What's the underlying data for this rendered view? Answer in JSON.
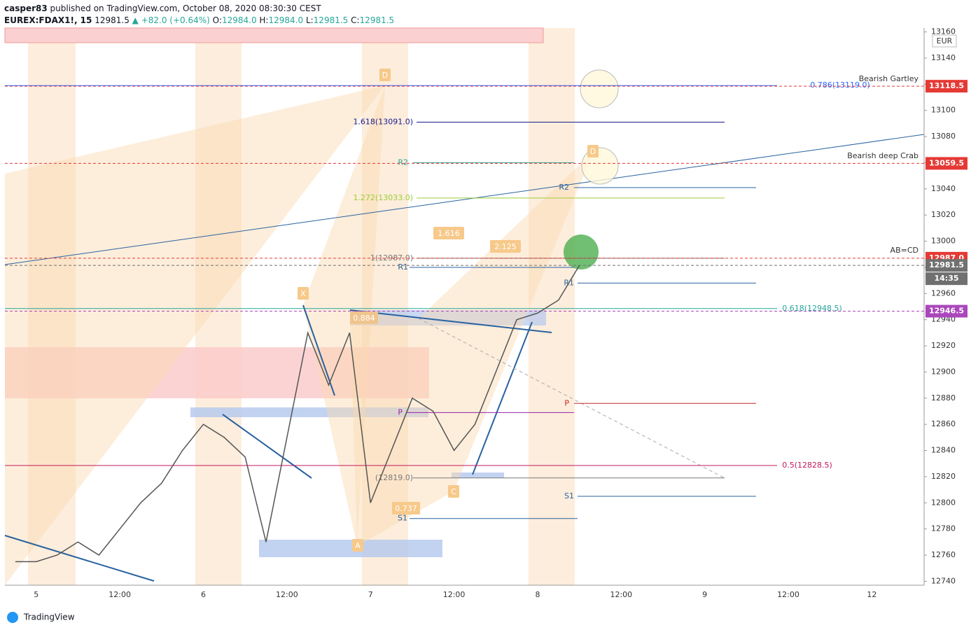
{
  "header": {
    "author": "casper83",
    "published": "published on TradingView.com, October 08, 2020 08:30:30 CEST",
    "symbol": "EUREX:FDAX1!, 15",
    "last": "12981.5",
    "change": "▲ +82.0 (+0.64%)",
    "ohlc": [
      {
        "key": "O:",
        "value": "12984.0"
      },
      {
        "key": "H:",
        "value": "12984.0"
      },
      {
        "key": "L:",
        "value": "12981.5"
      },
      {
        "key": "C:",
        "value": "12981.5"
      }
    ]
  },
  "chart_data": {
    "type": "line",
    "currency": "EUR",
    "categories": [
      null,
      "5",
      null,
      null,
      null,
      "12:00",
      null,
      null,
      null,
      "6",
      null,
      null,
      null,
      "12:00",
      null,
      null,
      null,
      "7",
      null,
      null,
      null,
      "12:00",
      null,
      null,
      null,
      "8",
      null,
      null,
      null,
      "12:00",
      null,
      null,
      null,
      "9",
      null,
      null,
      null,
      "12:00",
      null,
      null,
      null,
      "12",
      null,
      null
    ],
    "series": [
      {
        "color": "#555555",
        "values": [
          12755,
          12755,
          12760,
          12770,
          12760,
          12780,
          12800,
          12815,
          12840,
          12860,
          12850,
          12835,
          12770,
          12850,
          12930,
          12890,
          12930,
          12800,
          12840,
          12880,
          12870,
          12840,
          12860,
          12900,
          12940,
          12945,
          12955,
          12981.5,
          null,
          null,
          null,
          null,
          null,
          null,
          null,
          null,
          null,
          null,
          null,
          null,
          null,
          null,
          null,
          null
        ]
      }
    ],
    "ylim": [
      12737,
      13163
    ],
    "yticks": [
      12740,
      12760,
      12780,
      12800,
      12820,
      12840,
      12860,
      12880,
      12900,
      12920,
      12940,
      12960,
      12980,
      13000,
      13020,
      13040,
      13060,
      13080,
      13100,
      13120,
      13140,
      13160
    ],
    "levels": [
      {
        "label": "0.786(13119.0)",
        "value": 13119,
        "color": "#2962ff"
      },
      {
        "label": "1.618(13091.0)",
        "value": 13091,
        "color": "#1a1a8c"
      },
      {
        "label": "R2",
        "value": 13060,
        "color": "#26a69a"
      },
      {
        "label": "R2",
        "value": 13041,
        "color": "#2962a0"
      },
      {
        "label": "1.272(13033.0)",
        "value": 13033,
        "color": "#9acd32"
      },
      {
        "label": "1(12987.0)",
        "value": 12987,
        "color": "#787878"
      },
      {
        "label": "R1",
        "value": 12980,
        "color": "#2962a0"
      },
      {
        "label": "R1",
        "value": 12968,
        "color": "#2962a0"
      },
      {
        "label": "0.618(12948.5)",
        "value": 12948.5,
        "color": "#26a69a"
      },
      {
        "label": "P",
        "value": 12876,
        "color": "#c62828"
      },
      {
        "label": "P",
        "value": 12869,
        "color": "#8e24aa"
      },
      {
        "label": "0.5(12828.5)",
        "value": 12828.5,
        "color": "#c2185b"
      },
      {
        "label": "(12819.0)",
        "value": 12819,
        "color": "#787878"
      },
      {
        "label": "S1",
        "value": 12805,
        "color": "#2962a0"
      },
      {
        "label": "S1",
        "value": 12788,
        "color": "#2962a0"
      }
    ],
    "price_labels": [
      {
        "value": 13118.5,
        "label": "13118.5",
        "color": "#e53935"
      },
      {
        "value": 13059.5,
        "label": "13059.5",
        "color": "#e53935"
      },
      {
        "value": 12987,
        "label": "12987.0",
        "color": "#e53935"
      },
      {
        "value": 12981.5,
        "label": "12981.5",
        "color": "#707070"
      },
      {
        "value": 12946.5,
        "label": "12946.5",
        "color": "#ab47bc"
      }
    ],
    "countdown": "14:35",
    "annotations": [
      "Bearish Gartley",
      "Bearish deep Crab",
      "AB=CD",
      "1.616",
      "2.125",
      "0.884",
      "0.737",
      "X",
      "D",
      "D",
      "A",
      "C"
    ]
  },
  "footer": {
    "brand": "TradingView"
  }
}
